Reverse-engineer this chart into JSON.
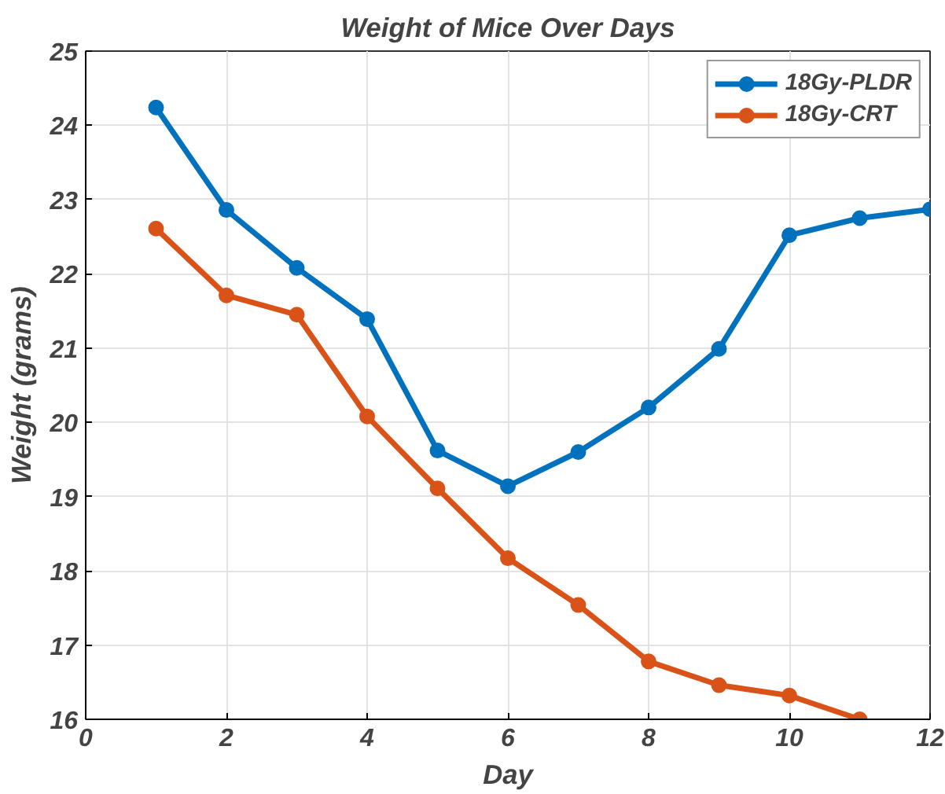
{
  "chart_data": {
    "type": "line",
    "title": "Weight of Mice Over Days",
    "xlabel": "Day",
    "ylabel": "Weight (grams)",
    "x": [
      1,
      2,
      3,
      4,
      5,
      6,
      7,
      8,
      9,
      10,
      11,
      12
    ],
    "series": [
      {
        "name": "18Gy-PLDR",
        "color": "#0072bd",
        "values": [
          24.24,
          22.86,
          22.08,
          21.39,
          19.62,
          19.14,
          19.6,
          20.2,
          20.99,
          22.52,
          22.75,
          22.87
        ]
      },
      {
        "name": "18Gy-CRT",
        "color": "#d95319",
        "x": [
          1,
          2,
          3,
          4,
          5,
          6,
          7,
          8,
          9,
          10,
          11
        ],
        "values": [
          22.61,
          21.71,
          21.45,
          20.08,
          19.11,
          18.17,
          17.54,
          16.78,
          16.46,
          16.32,
          16.0
        ]
      }
    ],
    "xlim": [
      0,
      12
    ],
    "ylim": [
      16,
      25
    ],
    "xticks": [
      0,
      2,
      4,
      6,
      8,
      10,
      12
    ],
    "yticks": [
      16,
      17,
      18,
      19,
      20,
      21,
      22,
      23,
      24,
      25
    ],
    "grid": true,
    "legend": "top right",
    "marker": "circle",
    "line_style": "solid"
  }
}
